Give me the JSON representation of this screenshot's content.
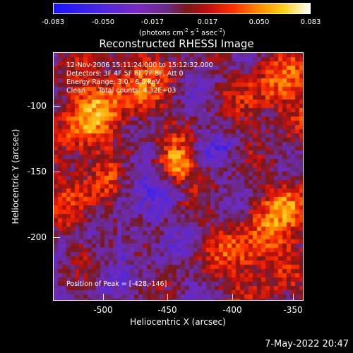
{
  "colorbar": {
    "ticks": [
      "-0.083",
      "-0.050",
      "-0.017",
      "0.017",
      "0.050",
      "0.083"
    ],
    "unit_prefix": "(photons cm",
    "unit_exp1": "-2",
    "unit_mid": " s",
    "unit_exp2": "-1",
    "unit_mid2": " asec",
    "unit_exp3": "-2",
    "unit_suffix": ")"
  },
  "title": "Reconstructed RHESSI Image",
  "info": {
    "line1": "12-Nov-2006 15:11:24.000 to 15:12:32.000",
    "line2": "Detectors: 3F 4F 5F 6F 7F 8F, Att 0",
    "line3": "Energy Range: 3.0 - 6.0 keV",
    "line4": "Clean      Total counts: 4.32E+03",
    "peak": "Position of Peak = [-428,-146]"
  },
  "axes": {
    "xlabel": "Heliocentric X (arcsec)",
    "ylabel": "Heliocentric Y (arcsec)",
    "xticks": [
      "-500",
      "-450",
      "-400",
      "-350"
    ],
    "yticks": [
      "-100",
      "-150",
      "-200"
    ]
  },
  "footer": "7-May-2022 20:47"
}
